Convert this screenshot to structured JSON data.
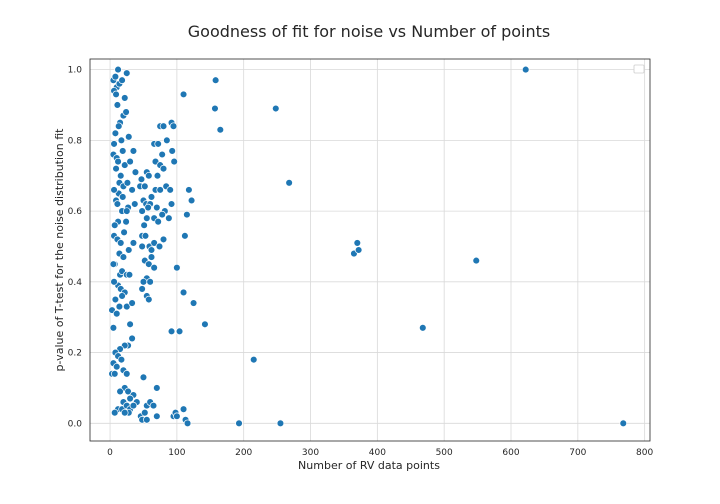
{
  "chart_data": {
    "type": "scatter",
    "title": "Goodness of fit for noise vs Number of points",
    "xlabel": "Number of RV data points",
    "ylabel": "p-value of T-test for the noise distribution fit",
    "xlim": [
      -30,
      808
    ],
    "ylim": [
      -0.05,
      1.03
    ],
    "xticks": [
      0,
      100,
      200,
      300,
      400,
      500,
      600,
      700,
      800
    ],
    "yticks": [
      0.0,
      0.2,
      0.4,
      0.6,
      0.8,
      1.0
    ],
    "xtick_labels": [
      "0",
      "100",
      "200",
      "300",
      "400",
      "500",
      "600",
      "700",
      "800"
    ],
    "ytick_labels": [
      "0.0",
      "0.2",
      "0.4",
      "0.6",
      "0.8",
      "1.0"
    ],
    "grid": true,
    "legend": "top-right (empty)",
    "color": "#1f77b4",
    "series": [
      {
        "points": [
          [
            5,
            0.97
          ],
          [
            8,
            0.98
          ],
          [
            12,
            1.0
          ],
          [
            10,
            0.95
          ],
          [
            6,
            0.94
          ],
          [
            9,
            0.93
          ],
          [
            14,
            0.96
          ],
          [
            18,
            0.97
          ],
          [
            25,
            0.99
          ],
          [
            22,
            0.92
          ],
          [
            11,
            0.9
          ],
          [
            20,
            0.87
          ],
          [
            24,
            0.88
          ],
          [
            15,
            0.85
          ],
          [
            13,
            0.84
          ],
          [
            8,
            0.82
          ],
          [
            17,
            0.8
          ],
          [
            28,
            0.81
          ],
          [
            6,
            0.79
          ],
          [
            5,
            0.76
          ],
          [
            10,
            0.75
          ],
          [
            12,
            0.74
          ],
          [
            19,
            0.77
          ],
          [
            22,
            0.73
          ],
          [
            30,
            0.74
          ],
          [
            35,
            0.77
          ],
          [
            38,
            0.71
          ],
          [
            9,
            0.72
          ],
          [
            16,
            0.7
          ],
          [
            14,
            0.68
          ],
          [
            20,
            0.67
          ],
          [
            26,
            0.68
          ],
          [
            33,
            0.66
          ],
          [
            13,
            0.65
          ],
          [
            6,
            0.66
          ],
          [
            9,
            0.63
          ],
          [
            19,
            0.64
          ],
          [
            11,
            0.62
          ],
          [
            18,
            0.6
          ],
          [
            27,
            0.61
          ],
          [
            37,
            0.62
          ],
          [
            25,
            0.6
          ],
          [
            12,
            0.57
          ],
          [
            7,
            0.56
          ],
          [
            6,
            0.53
          ],
          [
            11,
            0.52
          ],
          [
            16,
            0.51
          ],
          [
            21,
            0.54
          ],
          [
            24,
            0.57
          ],
          [
            35,
            0.51
          ],
          [
            14,
            0.48
          ],
          [
            20,
            0.47
          ],
          [
            28,
            0.49
          ],
          [
            7,
            0.45
          ],
          [
            5,
            0.45
          ],
          [
            15,
            0.42
          ],
          [
            18,
            0.43
          ],
          [
            25,
            0.42
          ],
          [
            29,
            0.42
          ],
          [
            12,
            0.39
          ],
          [
            6,
            0.4
          ],
          [
            16,
            0.38
          ],
          [
            22,
            0.37
          ],
          [
            8,
            0.35
          ],
          [
            18,
            0.36
          ],
          [
            14,
            0.33
          ],
          [
            25,
            0.33
          ],
          [
            33,
            0.34
          ],
          [
            3,
            0.32
          ],
          [
            10,
            0.31
          ],
          [
            30,
            0.28
          ],
          [
            5,
            0.27
          ],
          [
            27,
            0.22
          ],
          [
            22,
            0.22
          ],
          [
            33,
            0.24
          ],
          [
            15,
            0.21
          ],
          [
            8,
            0.2
          ],
          [
            12,
            0.19
          ],
          [
            17,
            0.18
          ],
          [
            5,
            0.17
          ],
          [
            10,
            0.16
          ],
          [
            20,
            0.15
          ],
          [
            3,
            0.14
          ],
          [
            7,
            0.14
          ],
          [
            25,
            0.14
          ],
          [
            22,
            0.1
          ],
          [
            27,
            0.09
          ],
          [
            15,
            0.09
          ],
          [
            35,
            0.08
          ],
          [
            30,
            0.07
          ],
          [
            20,
            0.06
          ],
          [
            40,
            0.06
          ],
          [
            12,
            0.04
          ],
          [
            18,
            0.04
          ],
          [
            25,
            0.05
          ],
          [
            30,
            0.04
          ],
          [
            35,
            0.05
          ],
          [
            28,
            0.03
          ],
          [
            22,
            0.03
          ],
          [
            7,
            0.03
          ],
          [
            47,
            0.69
          ],
          [
            45,
            0.67
          ],
          [
            52,
            0.67
          ],
          [
            55,
            0.71
          ],
          [
            58,
            0.7
          ],
          [
            62,
            0.64
          ],
          [
            50,
            0.63
          ],
          [
            48,
            0.6
          ],
          [
            54,
            0.62
          ],
          [
            60,
            0.62
          ],
          [
            57,
            0.61
          ],
          [
            51,
            0.56
          ],
          [
            55,
            0.58
          ],
          [
            66,
            0.58
          ],
          [
            48,
            0.53
          ],
          [
            53,
            0.53
          ],
          [
            59,
            0.5
          ],
          [
            48,
            0.5
          ],
          [
            62,
            0.49
          ],
          [
            52,
            0.46
          ],
          [
            58,
            0.45
          ],
          [
            62,
            0.47
          ],
          [
            66,
            0.44
          ],
          [
            55,
            0.41
          ],
          [
            50,
            0.4
          ],
          [
            60,
            0.4
          ],
          [
            48,
            0.38
          ],
          [
            55,
            0.36
          ],
          [
            58,
            0.35
          ],
          [
            66,
            0.79
          ],
          [
            72,
            0.79
          ],
          [
            78,
            0.76
          ],
          [
            68,
            0.74
          ],
          [
            75,
            0.73
          ],
          [
            71,
            0.7
          ],
          [
            80,
            0.72
          ],
          [
            84,
            0.67
          ],
          [
            68,
            0.66
          ],
          [
            75,
            0.66
          ],
          [
            70,
            0.61
          ],
          [
            82,
            0.6
          ],
          [
            78,
            0.59
          ],
          [
            72,
            0.57
          ],
          [
            88,
            0.58
          ],
          [
            66,
            0.51
          ],
          [
            74,
            0.5
          ],
          [
            80,
            0.52
          ],
          [
            92,
            0.62
          ],
          [
            90,
            0.66
          ],
          [
            92,
            0.85
          ],
          [
            95,
            0.84
          ],
          [
            93,
            0.77
          ],
          [
            96,
            0.74
          ],
          [
            100,
            0.44
          ],
          [
            75,
            0.84
          ],
          [
            80,
            0.84
          ],
          [
            85,
            0.8
          ],
          [
            110,
            0.93
          ],
          [
            158,
            0.97
          ],
          [
            157,
            0.89
          ],
          [
            165,
            0.83
          ],
          [
            118,
            0.66
          ],
          [
            122,
            0.63
          ],
          [
            115,
            0.59
          ],
          [
            112,
            0.53
          ],
          [
            110,
            0.37
          ],
          [
            125,
            0.34
          ],
          [
            92,
            0.26
          ],
          [
            104,
            0.26
          ],
          [
            142,
            0.28
          ],
          [
            50,
            0.13
          ],
          [
            70,
            0.1
          ],
          [
            46,
            0.02
          ],
          [
            52,
            0.03
          ],
          [
            55,
            0.05
          ],
          [
            60,
            0.06
          ],
          [
            65,
            0.05
          ],
          [
            48,
            0.01
          ],
          [
            55,
            0.01
          ],
          [
            70,
            0.02
          ],
          [
            95,
            0.02
          ],
          [
            98,
            0.03
          ],
          [
            100,
            0.02
          ],
          [
            110,
            0.04
          ],
          [
            113,
            0.01
          ],
          [
            116,
            0.0
          ],
          [
            193,
            0.0
          ],
          [
            255,
            0.0
          ],
          [
            215,
            0.18
          ],
          [
            248,
            0.89
          ],
          [
            268,
            0.68
          ],
          [
            365,
            0.48
          ],
          [
            370,
            0.51
          ],
          [
            372,
            0.49
          ],
          [
            548,
            0.46
          ],
          [
            468,
            0.27
          ],
          [
            622,
            1.0
          ],
          [
            768,
            0.0
          ]
        ]
      }
    ]
  }
}
